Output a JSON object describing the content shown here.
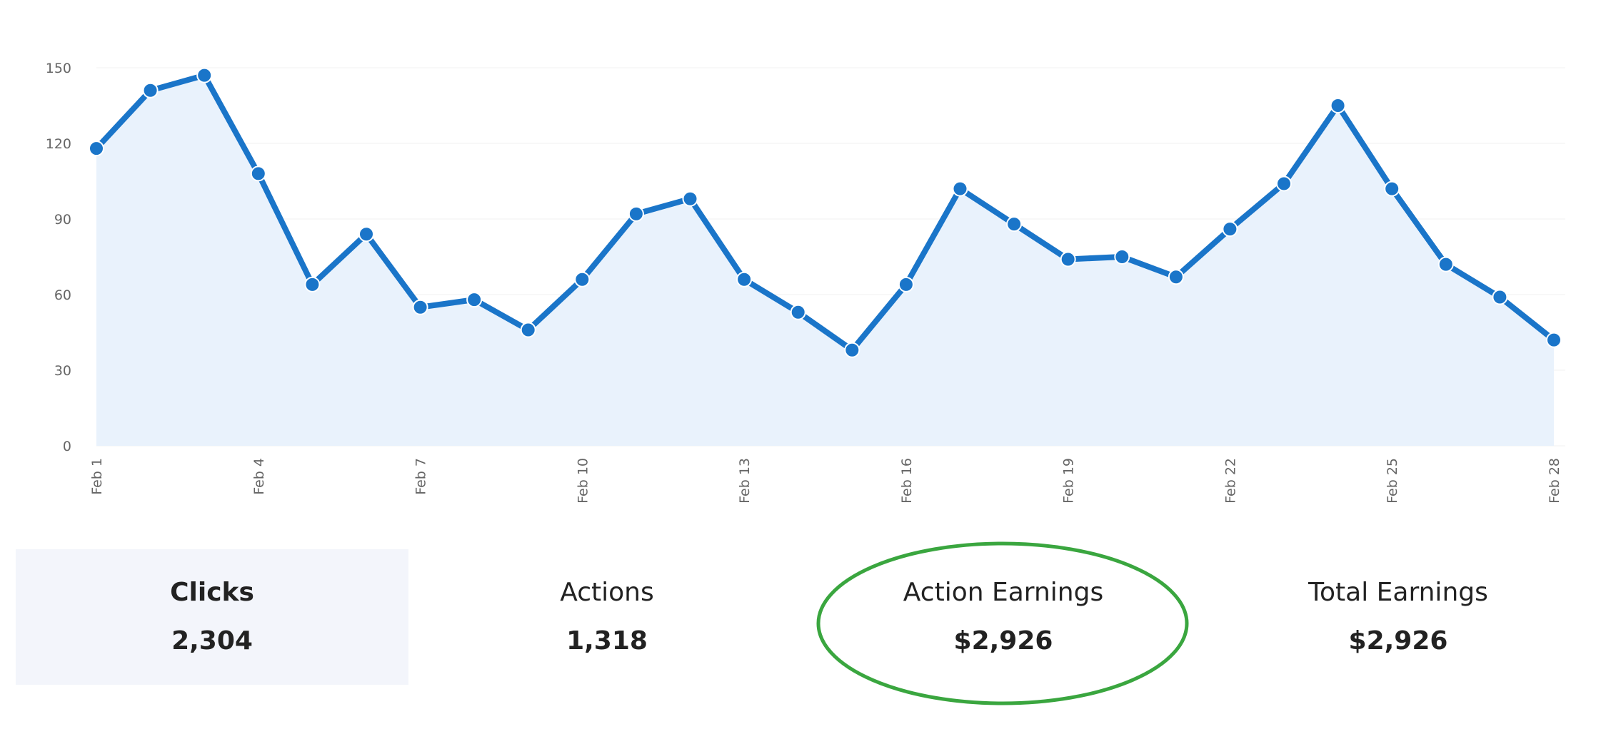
{
  "chart_data": {
    "type": "area",
    "x": [
      "Feb 1",
      "Feb 2",
      "Feb 3",
      "Feb 4",
      "Feb 5",
      "Feb 6",
      "Feb 7",
      "Feb 8",
      "Feb 9",
      "Feb 10",
      "Feb 11",
      "Feb 12",
      "Feb 13",
      "Feb 14",
      "Feb 15",
      "Feb 16",
      "Feb 17",
      "Feb 18",
      "Feb 19",
      "Feb 20",
      "Feb 21",
      "Feb 22",
      "Feb 23",
      "Feb 24",
      "Feb 25",
      "Feb 26",
      "Feb 27",
      "Feb 28"
    ],
    "x_tick_labels": [
      "Feb 1",
      "Feb 4",
      "Feb 7",
      "Feb 10",
      "Feb 13",
      "Feb 16",
      "Feb 19",
      "Feb 22",
      "Feb 25",
      "Feb 28"
    ],
    "values": [
      118,
      141,
      147,
      108,
      64,
      84,
      55,
      58,
      46,
      66,
      92,
      98,
      66,
      53,
      38,
      64,
      102,
      88,
      74,
      75,
      67,
      86,
      104,
      135,
      102,
      72,
      59,
      42
    ],
    "y_ticks": [
      "0",
      "30",
      "60",
      "90",
      "120",
      "150"
    ],
    "ylim": [
      0,
      150
    ],
    "grid": true,
    "title": "",
    "xlabel": "",
    "ylabel": "",
    "line_color": "#1a75c9",
    "fill_color": "#e9f2fc"
  },
  "stats": {
    "clicks": {
      "label": "Clicks",
      "value": "2,304"
    },
    "actions": {
      "label": "Actions",
      "value": "1,318"
    },
    "action_earnings": {
      "label": "Action Earnings",
      "value": "$2,926"
    },
    "total_earnings": {
      "label": "Total Earnings",
      "value": "$2,926"
    }
  },
  "annotation": {
    "color": "#3aa63f"
  }
}
